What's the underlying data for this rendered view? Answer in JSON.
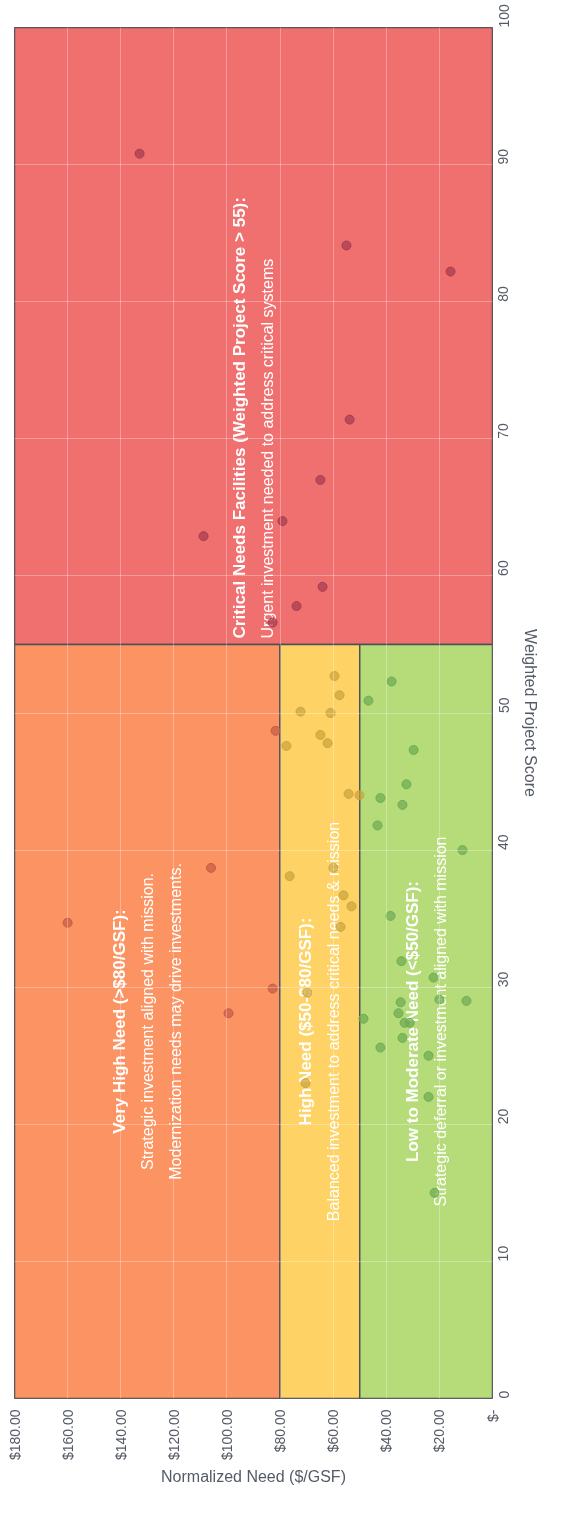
{
  "chart_data": {
    "type": "scatter",
    "xlabel": "Normalized Need ($/GSF)",
    "ylabel": "Weighted Project Score",
    "xlim": [
      180,
      0
    ],
    "xticks": [
      {
        "value": 180,
        "label": "$180.00"
      },
      {
        "value": 160,
        "label": "$160.00"
      },
      {
        "value": 140,
        "label": "$140.00"
      },
      {
        "value": 120,
        "label": "$120.00"
      },
      {
        "value": 100,
        "label": "$100.00"
      },
      {
        "value": 80,
        "label": "$80.00"
      },
      {
        "value": 60,
        "label": "$60.00"
      },
      {
        "value": 40,
        "label": "$40.00"
      },
      {
        "value": 20,
        "label": "$20.00"
      },
      {
        "value": 0,
        "label": "$-"
      }
    ],
    "ylim": [
      0,
      100
    ],
    "yticks": [
      0,
      10,
      20,
      30,
      40,
      50,
      60,
      70,
      80,
      90,
      100
    ],
    "grid": true,
    "marker": "circle",
    "series": [
      {
        "color": "#a33a4e",
        "x": [
          132.9,
          55.0,
          15.8,
          53.8,
          64.8,
          79.1,
          108.8,
          64.0,
          73.8,
          82.8
        ],
        "values": [
          90.8,
          84.1,
          82.2,
          71.4,
          67.0,
          64.0,
          62.9,
          59.2,
          57.8,
          56.6
        ]
      },
      {
        "color": "#c25a45",
        "x": [
          160.0,
          106.0,
          99.4,
          82.8,
          81.7
        ],
        "values": [
          34.7,
          38.7,
          28.1,
          29.9,
          48.7
        ]
      },
      {
        "color": "#c8a43c",
        "x": [
          59.5,
          57.6,
          72.3,
          61.0,
          64.8,
          62.1,
          77.6,
          54.2,
          50.1,
          59.9,
          76.4,
          56.1,
          53.1,
          57.2,
          69.7,
          70.4
        ],
        "values": [
          52.7,
          51.3,
          50.1,
          50.0,
          48.4,
          47.8,
          47.6,
          44.1,
          44.0,
          38.7,
          38.1,
          36.7,
          35.9,
          34.4,
          29.6,
          23.0
        ]
      },
      {
        "color": "#6caa52",
        "x": [
          38.0,
          46.7,
          29.7,
          32.4,
          42.2,
          33.9,
          43.3,
          11.3,
          38.4,
          34.3,
          22.2,
          20.0,
          9.8,
          34.6,
          35.4,
          48.6,
          33.1,
          31.2,
          33.9,
          42.2,
          24.1,
          24.1,
          21.8
        ],
        "values": [
          52.3,
          50.9,
          47.3,
          44.8,
          43.8,
          43.3,
          41.8,
          40.0,
          35.2,
          31.9,
          30.7,
          29.1,
          29.0,
          28.9,
          28.1,
          27.7,
          27.4,
          27.4,
          26.3,
          25.6,
          25.0,
          22.0,
          15.0
        ]
      }
    ],
    "bands": [
      {
        "axis": "y",
        "from": 55,
        "to": 100,
        "color": "#f07070",
        "label": "Critical Needs Facilities (Weighted Project Score > 55):\nUrgent investment needed to address critical systems"
      },
      {
        "axis": "x",
        "from": 80,
        "to": 180,
        "color": "#fc9362",
        "label": "Very High Need (>$80/GSF):\nStrategic investment aligned with mission.\nModernization needs may drive investments."
      },
      {
        "axis": "x",
        "from": 50,
        "to": 80,
        "color": "#fed265",
        "label": "High Need ($50-$80/GSF):\nBalanced investment to address critical needs & mission"
      },
      {
        "axis": "x",
        "from": 0,
        "to": 50,
        "color": "#b5dc78",
        "label": "Low to Moderate Need (<$50/GSF):\nStrategic deferral or investment aligned with mission"
      }
    ]
  }
}
